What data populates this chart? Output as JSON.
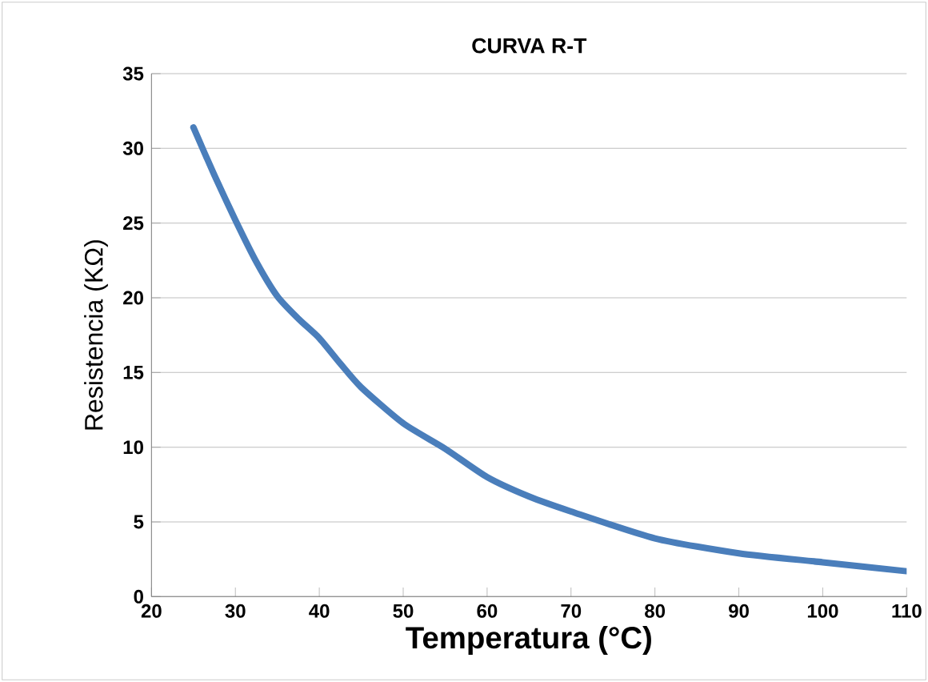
{
  "chart_data": {
    "type": "line",
    "title": "CURVA R-T",
    "xlabel": "Temperatura  (°C)",
    "ylabel": "Resistencia (KΩ)",
    "x": [
      25,
      27.5,
      30,
      32.5,
      35,
      37.5,
      40,
      42.5,
      45,
      50,
      55,
      60,
      65,
      70,
      80,
      90,
      100,
      110
    ],
    "series": [
      {
        "color": "#4a7ebb",
        "values": [
          31.4,
          28.2,
          25.2,
          22.4,
          20.1,
          18.6,
          17.3,
          15.6,
          14.0,
          11.6,
          9.9,
          8.0,
          6.7,
          5.7,
          3.9,
          2.9,
          2.3,
          1.7
        ]
      }
    ],
    "xlim": [
      20,
      110
    ],
    "ylim": [
      0,
      35
    ],
    "xticks": [
      20,
      30,
      40,
      50,
      60,
      70,
      80,
      90,
      100,
      110
    ],
    "yticks": [
      0,
      5,
      10,
      15,
      20,
      25,
      30,
      35
    ],
    "grid": "y",
    "marker": "none",
    "line_style": "solid"
  }
}
